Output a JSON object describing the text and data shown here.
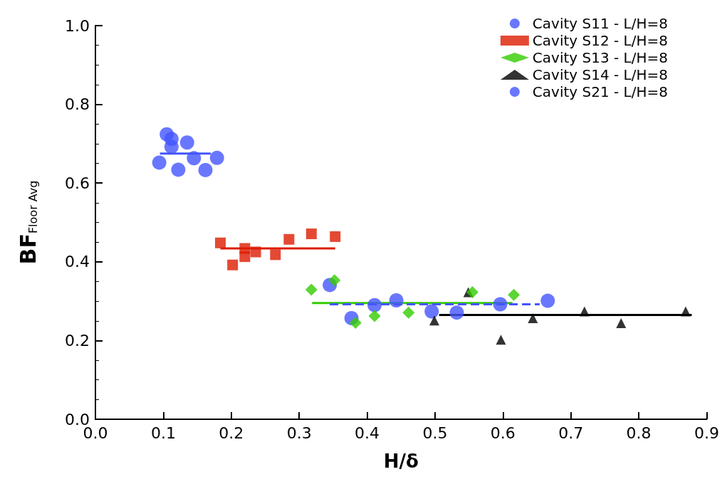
{
  "chart_data": {
    "type": "scatter",
    "xlabel": "H/δ",
    "ylabel": "BF$_{Floor Avg}$",
    "xlim": [
      0,
      0.9
    ],
    "xticks": [
      {
        "value": 0,
        "label": "0.0"
      },
      0.1,
      0.2,
      0.3,
      0.4,
      0.5,
      0.6,
      0.7,
      0.8,
      0.9
    ],
    "ylim": [
      0,
      1
    ],
    "yticks": [
      {
        "value": 0,
        "label": "0.0"
      },
      0.2,
      0.4,
      0.6,
      0.8,
      {
        "value": 1,
        "label": "1.0"
      }
    ],
    "grid": false,
    "legend": "top right",
    "series": [
      {
        "name": "Cavity S11 - L/H=8",
        "color": "#4455ff",
        "marker": "circle",
        "x": [
          0.105,
          0.112,
          0.135,
          0.112,
          0.094,
          0.122,
          0.145,
          0.162,
          0.179
        ],
        "values": [
          0.724,
          0.712,
          0.703,
          0.692,
          0.652,
          0.634,
          0.663,
          0.633,
          0.664
        ]
      },
      {
        "name": "Cavity S12 - L/H=8",
        "color": "#dd1c00",
        "marker": "square",
        "x": [
          0.184,
          0.202,
          0.22,
          0.22,
          0.236,
          0.265,
          0.285,
          0.318,
          0.353
        ],
        "values": [
          0.448,
          0.392,
          0.434,
          0.413,
          0.425,
          0.418,
          0.457,
          0.471,
          0.464
        ]
      },
      {
        "name": "Cavity S13 - L/H=8",
        "color": "#33cc00",
        "marker": "diamond",
        "x": [
          0.318,
          0.352,
          0.383,
          0.411,
          0.461,
          0.555,
          0.616
        ],
        "values": [
          0.329,
          0.353,
          0.245,
          0.262,
          0.271,
          0.323,
          0.316
        ]
      },
      {
        "name": "Cavity S14 - L/H=8",
        "color": "#000000",
        "marker": "triangle",
        "x": [
          0.499,
          0.549,
          0.597,
          0.644,
          0.72,
          0.774,
          0.869
        ],
        "values": [
          0.251,
          0.323,
          0.202,
          0.257,
          0.274,
          0.244,
          0.274
        ]
      },
      {
        "name": "Cavity S21 - L/H=8",
        "color": "#4455ff",
        "marker": "circle",
        "x": [
          0.345,
          0.377,
          0.411,
          0.443,
          0.495,
          0.532,
          0.596,
          0.666
        ],
        "values": [
          0.341,
          0.257,
          0.29,
          0.302,
          0.274,
          0.271,
          0.292,
          0.301
        ]
      },
      {
        "type": "line",
        "color": "#4455ff",
        "marker": "none",
        "line_style": "solid",
        "x": [
          0.095,
          0.17
        ],
        "values": [
          0.675,
          0.675
        ]
      },
      {
        "type": "line",
        "color": "#dd1c00",
        "marker": "none",
        "line_style": "solid",
        "x": [
          0.184,
          0.353
        ],
        "values": [
          0.434,
          0.434
        ]
      },
      {
        "type": "line",
        "color": "#33cc00",
        "marker": "none",
        "line_style": "solid",
        "x": [
          0.319,
          0.614
        ],
        "values": [
          0.295,
          0.295
        ]
      },
      {
        "type": "line",
        "color": "#000000",
        "marker": "none",
        "line_style": "solid",
        "x": [
          0.506,
          0.878
        ],
        "values": [
          0.265,
          0.265
        ]
      },
      {
        "type": "line",
        "color": "#4455ff",
        "marker": "none",
        "line_style": "dashed",
        "x": [
          0.345,
          0.654
        ],
        "values": [
          0.292,
          0.292
        ]
      }
    ]
  }
}
